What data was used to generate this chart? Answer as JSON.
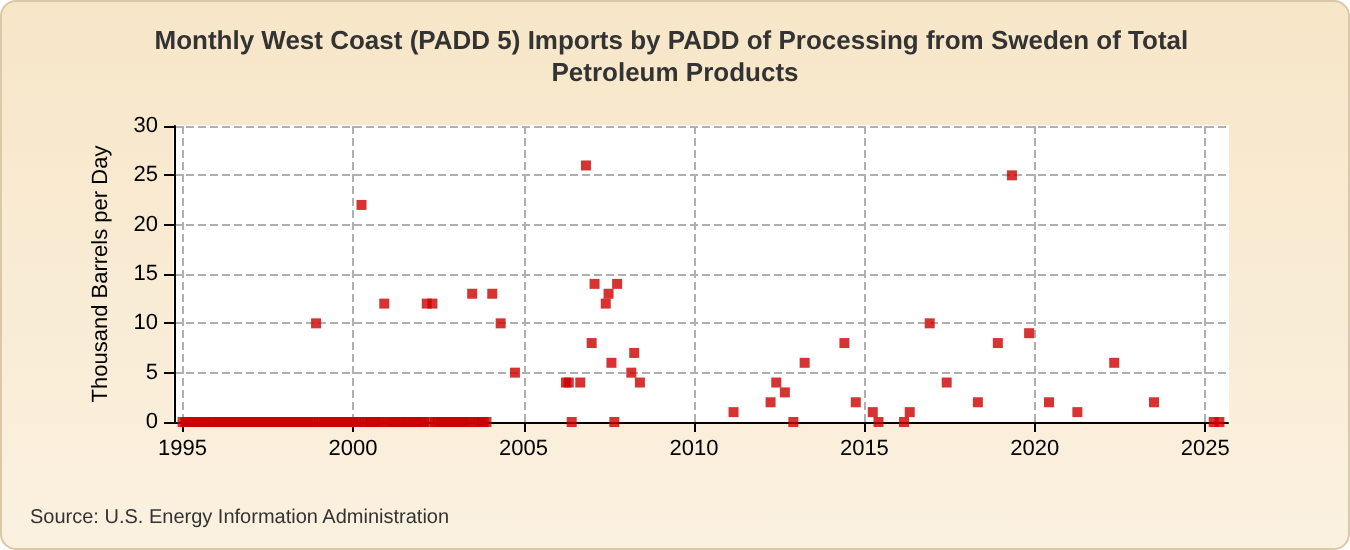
{
  "chart_data": {
    "type": "scatter",
    "title": "Monthly West Coast (PADD 5) Imports by PADD of Processing from Sweden of Total Petroleum Products",
    "ylabel": "Thousand Barrels per Day",
    "annotations": [
      "Source: U.S. Energy Information Administration"
    ],
    "x": [
      "1995-01",
      "1995-02",
      "1995-03",
      "1995-04",
      "1995-05",
      "1995-06",
      "1995-07",
      "1995-08",
      "1995-09",
      "1995-10",
      "1995-11",
      "1995-12",
      "1996-01",
      "1996-02",
      "1996-03",
      "1996-04",
      "1996-05",
      "1996-06",
      "1996-07",
      "1996-08",
      "1996-09",
      "1996-10",
      "1996-11",
      "1996-12",
      "1997-01",
      "1997-02",
      "1997-03",
      "1997-04",
      "1997-05",
      "1997-06",
      "1997-07",
      "1997-08",
      "1997-09",
      "1997-10",
      "1997-11",
      "1997-12",
      "1998-01",
      "1998-02",
      "1998-03",
      "1998-04",
      "1998-05",
      "1998-06",
      "1998-07",
      "1998-08",
      "1998-09",
      "1998-10",
      "1998-11",
      "1998-12",
      "1999-01",
      "1999-02",
      "1999-03",
      "1999-04",
      "1999-05",
      "1999-06",
      "1999-07",
      "1999-08",
      "1999-09",
      "1999-10",
      "1999-11",
      "1999-12",
      "2000-01",
      "2000-02",
      "2000-03",
      "2000-04",
      "2000-05",
      "2000-06",
      "2000-07",
      "2000-08",
      "2000-09",
      "2000-10",
      "2000-11",
      "2000-12",
      "2001-01",
      "2001-02",
      "2001-03",
      "2001-04",
      "2001-05",
      "2001-06",
      "2001-07",
      "2001-08",
      "2001-09",
      "2001-10",
      "2001-11",
      "2001-12",
      "2002-01",
      "2002-02",
      "2002-03",
      "2002-04",
      "2002-05",
      "2002-06",
      "2002-07",
      "2002-08",
      "2002-09",
      "2002-10",
      "2002-11",
      "2002-12",
      "2003-01",
      "2003-02",
      "2003-03",
      "2003-04",
      "2003-05",
      "2003-06",
      "2003-07",
      "2003-08",
      "2003-09",
      "2003-10",
      "2003-11",
      "2003-12",
      "2004-02",
      "2004-05",
      "2004-10",
      "2006-04",
      "2006-05",
      "2006-06",
      "2006-09",
      "2006-11",
      "2007-01",
      "2007-02",
      "2007-06",
      "2007-07",
      "2007-08",
      "2007-09",
      "2007-10",
      "2008-03",
      "2008-04",
      "2008-06",
      "2011-03",
      "2012-04",
      "2012-06",
      "2012-09",
      "2012-12",
      "2013-04",
      "2014-06",
      "2014-10",
      "2015-04",
      "2015-06",
      "2016-03",
      "2016-05",
      "2016-12",
      "2017-06",
      "2018-05",
      "2018-12",
      "2019-05",
      "2019-11",
      "2020-06",
      "2021-04",
      "2022-05",
      "2023-07",
      "2025-04",
      "2025-06"
    ],
    "values": [
      0,
      0,
      0,
      0,
      0,
      0,
      0,
      0,
      0,
      0,
      0,
      0,
      0,
      0,
      0,
      0,
      0,
      0,
      0,
      0,
      0,
      0,
      0,
      0,
      0,
      0,
      0,
      0,
      0,
      0,
      0,
      0,
      0,
      0,
      0,
      0,
      0,
      0,
      0,
      0,
      0,
      0,
      0,
      0,
      0,
      0,
      0,
      10,
      0,
      0,
      0,
      0,
      0,
      0,
      0,
      0,
      0,
      0,
      0,
      0,
      0,
      0,
      0,
      22,
      0,
      0,
      0,
      0,
      0,
      0,
      0,
      12,
      0,
      0,
      0,
      0,
      0,
      0,
      0,
      0,
      0,
      0,
      0,
      0,
      0,
      0,
      12,
      0,
      12,
      0,
      0,
      0,
      0,
      0,
      0,
      0,
      0,
      0,
      0,
      0,
      0,
      0,
      13,
      0,
      0,
      0,
      0,
      0,
      13,
      10,
      5,
      4,
      4,
      0,
      4,
      26,
      8,
      14,
      12,
      13,
      6,
      0,
      14,
      5,
      7,
      4,
      1,
      2,
      4,
      3,
      0,
      6,
      8,
      2,
      1,
      0,
      0,
      1,
      10,
      4,
      2,
      8,
      25,
      9,
      2,
      1,
      6,
      2,
      0,
      0
    ],
    "color": "#cc0000",
    "marker": "square",
    "grid": true,
    "xlim": [
      "1994-10",
      "2025-09"
    ],
    "xticks": [
      "1995",
      "2000",
      "2005",
      "2010",
      "2015",
      "2020",
      "2025"
    ],
    "ylim": [
      0,
      30
    ],
    "yticks": [
      0,
      5,
      10,
      15,
      20,
      25,
      30
    ]
  }
}
